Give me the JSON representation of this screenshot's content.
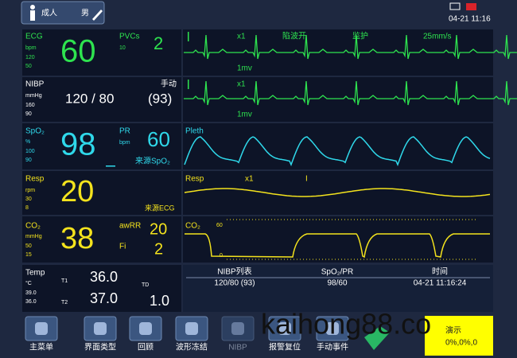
{
  "top_bar": {
    "patient_type": "成人",
    "gender": "男",
    "datetime": "04-21 11:16"
  },
  "params": {
    "ecg": {
      "label": "ECG",
      "unit": "bpm",
      "upper": "120",
      "lower": "50",
      "hr": "60",
      "pvcs_label": "PVCs",
      "pvcs_limit": "10",
      "pvcs": "2"
    },
    "nibp": {
      "label": "NIBP",
      "unit": "mmHg",
      "upper": "160",
      "lower": "90",
      "mode": "手动",
      "value": "120 / 80",
      "mean": "(93)"
    },
    "spo2": {
      "label": "SpO₂",
      "unit": "%",
      "upper": "100",
      "lower": "90",
      "value": "98",
      "pr_label": "PR",
      "pr_unit": "bpm",
      "pr": "60",
      "source": "来源SpO₂"
    },
    "resp": {
      "label": "Resp",
      "unit": "rpm",
      "upper": "30",
      "lower": "8",
      "value": "20",
      "source": "来源ECG"
    },
    "co2": {
      "label": "CO₂",
      "unit": "mmHg",
      "upper": "50",
      "lower": "15",
      "value": "38",
      "awrr_label": "awRR",
      "awrr": "20",
      "fi_label": "Fi",
      "fi": "2"
    },
    "temp": {
      "label": "Temp",
      "unit": "°C",
      "upper": "39.0",
      "lower": "36.0",
      "t1_label": "T1",
      "t1": "36.0",
      "t2_label": "T2",
      "t2": "37.0",
      "td_label": "TD",
      "td": "1.0"
    }
  },
  "waves": {
    "ecg1": {
      "gain": "x1",
      "filter": "陷波开",
      "mode": "监护",
      "speed": "25mm/s",
      "scale": "1mv"
    },
    "ecg2": {
      "gain": "x1",
      "scale": "1mv"
    },
    "pleth": {
      "label": "Pleth"
    },
    "resp": {
      "label": "Resp",
      "gain": "x1",
      "lead": "I"
    },
    "co2": {
      "label": "CO₂",
      "scale_high": "60",
      "scale_low": "0"
    }
  },
  "nibp_list": {
    "headers": [
      "NIBP列表",
      "SpO₂/PR",
      "时间"
    ],
    "row": [
      "120/80 (93)",
      "98/60",
      "04-21 11:16:24"
    ]
  },
  "toolbar": {
    "buttons": [
      "主菜单",
      "界面类型",
      "回顾",
      "波形冻结",
      "NIBP",
      "报警复位",
      "手动事件"
    ]
  },
  "alarm": {
    "title": "演示",
    "value": "0%,0%,0"
  },
  "watermark": "kaihong88.co"
}
